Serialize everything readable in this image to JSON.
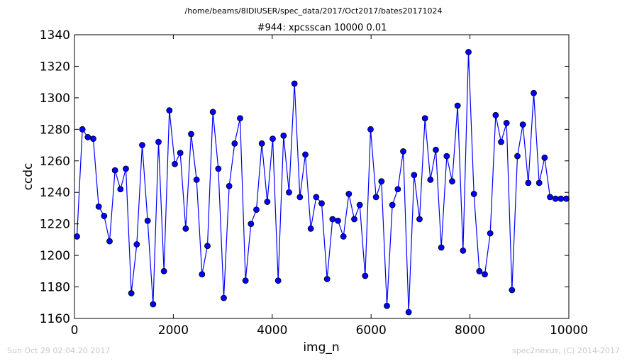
{
  "header": {
    "path": "/home/beams/8IDIUSER/spec_data/2017/Oct2017/bates20171024",
    "scan_title": "#944: xpcsscan 10000 0.01"
  },
  "footer": {
    "timestamp": "Sun Oct 29 02:04:20 2017",
    "credit": "spec2nexus, (C) 2014-2017"
  },
  "chart_data": {
    "type": "line",
    "title": "#944: xpcsscan 10000 0.01",
    "xlabel": "img_n",
    "ylabel": "ccdc",
    "xlim": [
      0,
      10000
    ],
    "ylim": [
      1160,
      1340
    ],
    "xticks": [
      0,
      2000,
      4000,
      6000,
      8000,
      10000
    ],
    "yticks": [
      1160,
      1180,
      1200,
      1220,
      1240,
      1260,
      1280,
      1300,
      1320,
      1340
    ],
    "grid": false,
    "marker": "circle",
    "line_color": "#0000ff",
    "marker_color": "#0000ff",
    "series": [
      {
        "x": [
          50,
          160,
          270,
          380,
          490,
          600,
          710,
          820,
          930,
          1040,
          1150,
          1260,
          1370,
          1480,
          1590,
          1700,
          1810,
          1920,
          2030,
          2140,
          2250,
          2360,
          2470,
          2580,
          2690,
          2800,
          2910,
          3020,
          3130,
          3240,
          3350,
          3460,
          3570,
          3680,
          3790,
          3900,
          4010,
          4120,
          4230,
          4340,
          4450,
          4560,
          4670,
          4780,
          4890,
          5000,
          5110,
          5220,
          5330,
          5440,
          5550,
          5660,
          5770,
          5880,
          5990,
          6100,
          6210,
          6320,
          6430,
          6540,
          6650,
          6760,
          6870,
          6980,
          7090,
          7200,
          7310,
          7420,
          7530,
          7640,
          7750,
          7860,
          7970,
          8080,
          8190,
          8300,
          8410,
          8520,
          8630,
          8740,
          8850,
          8960,
          9070,
          9180,
          9290,
          9400,
          9510,
          9620,
          9730,
          9840,
          9950
        ],
        "y": [
          1212,
          1280,
          1275,
          1274,
          1231,
          1225,
          1209,
          1254,
          1242,
          1255,
          1176,
          1207,
          1270,
          1222,
          1169,
          1272,
          1190,
          1292,
          1258,
          1265,
          1217,
          1277,
          1248,
          1188,
          1206,
          1291,
          1255,
          1173,
          1244,
          1271,
          1287,
          1184,
          1220,
          1229,
          1271,
          1234,
          1274,
          1184,
          1276,
          1240,
          1309,
          1237,
          1264,
          1217,
          1237,
          1233,
          1185,
          1223,
          1222,
          1212,
          1239,
          1223,
          1232,
          1187,
          1280,
          1237,
          1247,
          1168,
          1232,
          1242,
          1266,
          1164,
          1251,
          1223,
          1287,
          1248,
          1267,
          1205,
          1263,
          1247,
          1295,
          1203,
          1329,
          1239,
          1190,
          1188,
          1214,
          1289,
          1272,
          1284,
          1178,
          1263,
          1283,
          1246,
          1303,
          1246,
          1262,
          1237,
          1236,
          1236,
          1236
        ]
      }
    ]
  }
}
